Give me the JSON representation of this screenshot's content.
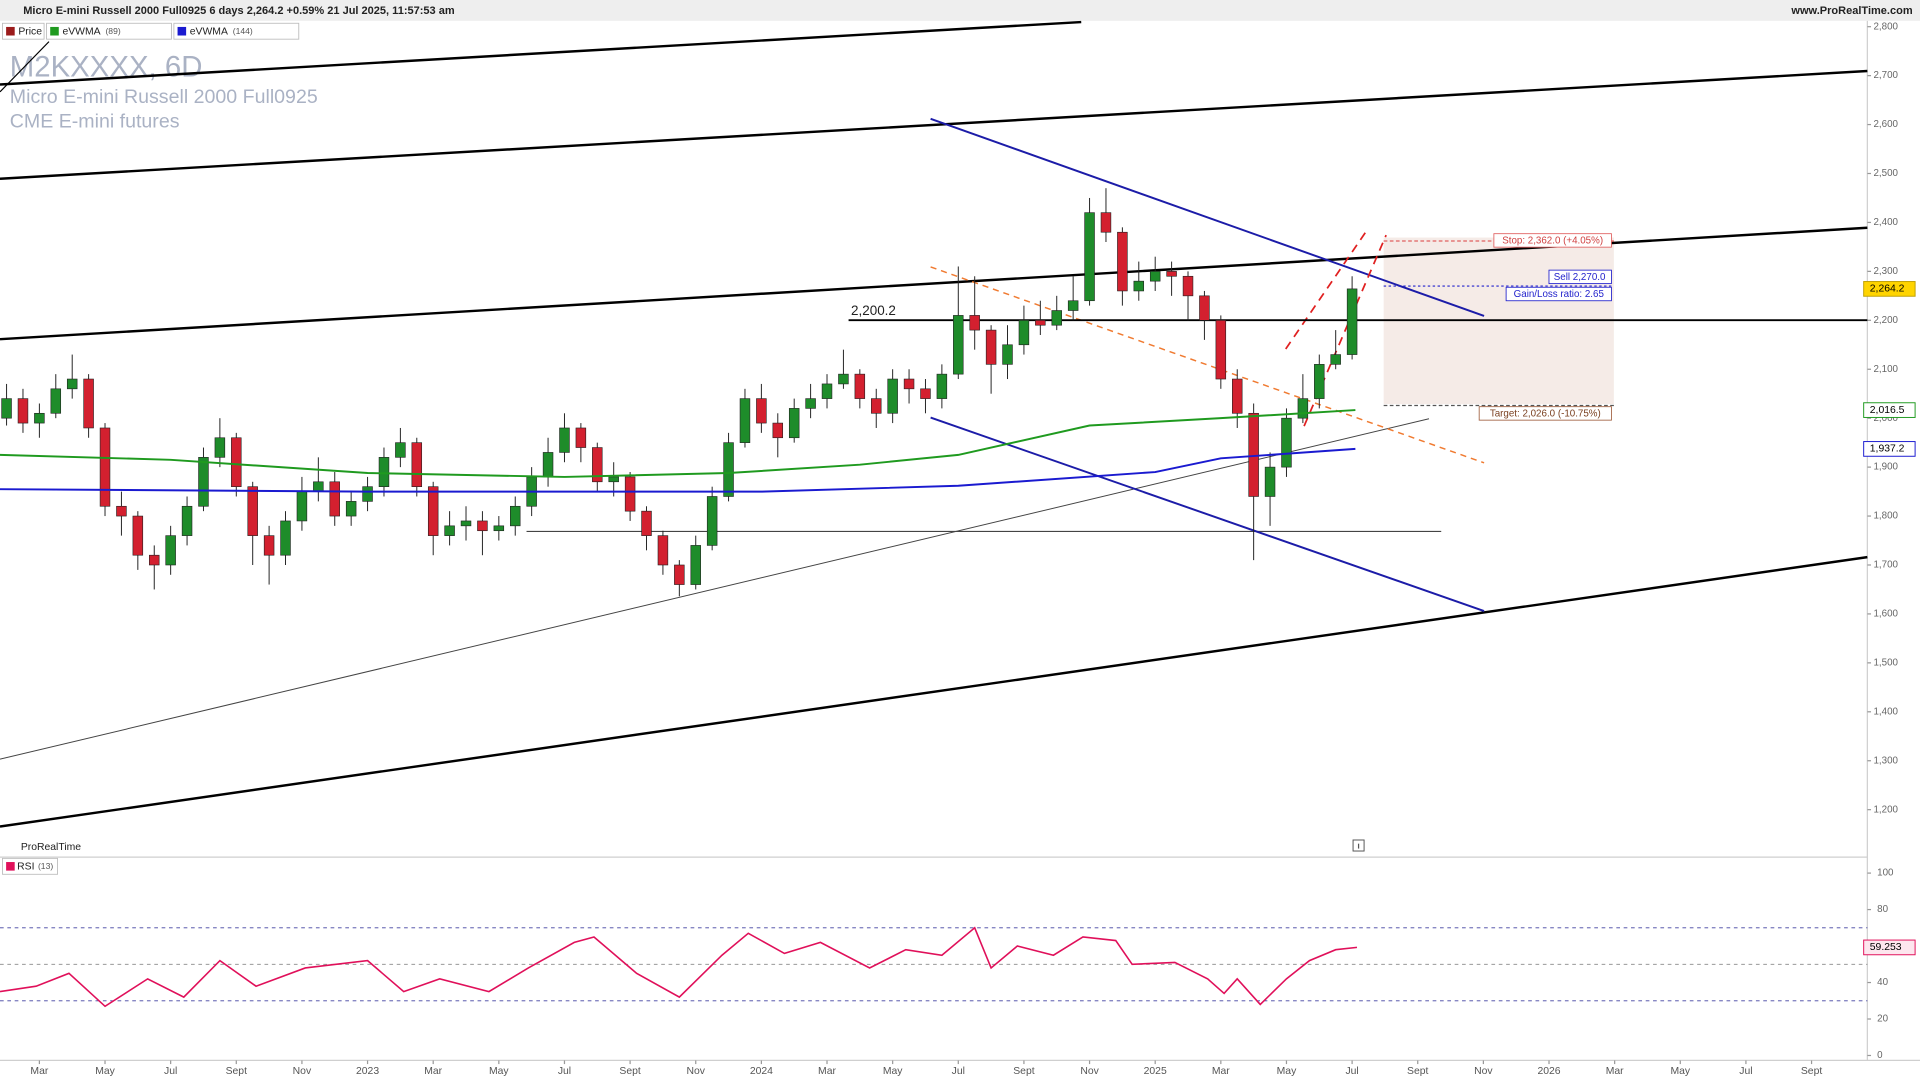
{
  "header": {
    "title": "Micro E-mini Russell 2000 Full0925 6 days 2,264.2 +0.59% 21 Jul 2025, 11:57:53 am",
    "site": "www.ProRealTime.com",
    "brand": "ProRealTime"
  },
  "chart_data": [
    {
      "type": "candlestick",
      "title": "M2KXXXX, 6D",
      "subtitle": [
        "Micro E-mini Russell 2000 Full0925",
        "CME E-mini futures"
      ],
      "xlim": [
        0.8,
        57.7
      ],
      "xticks": [
        {
          "value": 2,
          "label": "Mar"
        },
        {
          "value": 4,
          "label": "May"
        },
        {
          "value": 6,
          "label": "Jul"
        },
        {
          "value": 8,
          "label": "Sept"
        },
        {
          "value": 10,
          "label": "Nov"
        },
        {
          "value": 12,
          "label": "2023"
        },
        {
          "value": 14,
          "label": "Mar"
        },
        {
          "value": 16,
          "label": "May"
        },
        {
          "value": 18,
          "label": "Jul"
        },
        {
          "value": 20,
          "label": "Sept"
        },
        {
          "value": 22,
          "label": "Nov"
        },
        {
          "value": 24,
          "label": "2024"
        },
        {
          "value": 26,
          "label": "Mar"
        },
        {
          "value": 28,
          "label": "May"
        },
        {
          "value": 30,
          "label": "Jul"
        },
        {
          "value": 32,
          "label": "Sept"
        },
        {
          "value": 34,
          "label": "Nov"
        },
        {
          "value": 36,
          "label": "2025"
        },
        {
          "value": 38,
          "label": "Mar"
        },
        {
          "value": 40,
          "label": "May"
        },
        {
          "value": 42,
          "label": "Jul"
        },
        {
          "value": 44,
          "label": "Sept"
        },
        {
          "value": 46,
          "label": "Nov"
        },
        {
          "value": 48,
          "label": "2026"
        },
        {
          "value": 50,
          "label": "Mar"
        },
        {
          "value": 52,
          "label": "May"
        },
        {
          "value": 54,
          "label": "Jul"
        },
        {
          "value": 56,
          "label": "Sept"
        }
      ],
      "ylim": [
        1103,
        2812
      ],
      "yticks": [
        {
          "value": 1200,
          "label": "1,200"
        },
        {
          "value": 1300,
          "label": "1,300"
        },
        {
          "value": 1400,
          "label": "1,400"
        },
        {
          "value": 1500,
          "label": "1,500"
        },
        {
          "value": 1600,
          "label": "1,600"
        },
        {
          "value": 1700,
          "label": "1,700"
        },
        {
          "value": 1800,
          "label": "1,800"
        },
        {
          "value": 1900,
          "label": "1,900"
        },
        {
          "value": 2000,
          "label": "2,000"
        },
        {
          "value": 2100,
          "label": "2,100"
        },
        {
          "value": 2200,
          "label": "2,200"
        },
        {
          "value": 2300,
          "label": "2,300"
        },
        {
          "value": 2400,
          "label": "2,400"
        },
        {
          "value": 2500,
          "label": "2,500"
        },
        {
          "value": 2600,
          "label": "2,600"
        },
        {
          "value": 2700,
          "label": "2,700"
        },
        {
          "value": 2800,
          "label": "2,800"
        }
      ],
      "grid": false,
      "series": [
        {
          "name": "Price",
          "color": "#9b1b1b",
          "up_color": "#1e8c2a",
          "down_color": "#d3202f",
          "last_label": "2,264.2",
          "x": [
            1,
            1.5,
            2,
            2.5,
            3,
            3.5,
            4,
            4.5,
            5,
            5.5,
            6,
            6.5,
            7,
            7.5,
            8,
            8.5,
            9,
            9.5,
            10,
            10.5,
            11,
            11.5,
            12,
            12.5,
            13,
            13.5,
            14,
            14.5,
            15,
            15.5,
            16,
            16.5,
            17,
            17.5,
            18,
            18.5,
            19,
            19.5,
            20,
            20.5,
            21,
            21.5,
            22,
            22.5,
            23,
            23.5,
            24,
            24.5,
            25,
            25.5,
            26,
            26.5,
            27,
            27.5,
            28,
            28.5,
            29,
            29.5,
            30,
            30.5,
            31,
            31.5,
            32,
            32.5,
            33,
            33.5,
            34,
            34.5,
            35,
            35.5,
            36,
            36.5,
            37,
            37.5,
            38,
            38.5,
            39,
            39.5,
            40,
            40.5,
            41,
            41.5,
            42
          ],
          "open": [
            2000,
            2040,
            1990,
            2010,
            2060,
            2080,
            1980,
            1820,
            1800,
            1720,
            1700,
            1760,
            1820,
            1920,
            1960,
            1860,
            1760,
            1720,
            1790,
            1850,
            1870,
            1800,
            1830,
            1860,
            1920,
            1950,
            1860,
            1760,
            1780,
            1790,
            1770,
            1780,
            1820,
            1880,
            1930,
            1980,
            1940,
            1870,
            1880,
            1810,
            1760,
            1700,
            1660,
            1740,
            1840,
            1950,
            2040,
            1990,
            1960,
            2020,
            2040,
            2070,
            2090,
            2040,
            2010,
            2080,
            2060,
            2040,
            2090,
            2210,
            2180,
            2110,
            2150,
            2200,
            2190,
            2220,
            2240,
            2420,
            2380,
            2260,
            2280,
            2300,
            2290,
            2250,
            2200,
            2080,
            2010,
            1840,
            1900,
            2000,
            2040,
            2110,
            2130
          ],
          "high": [
            2070,
            2060,
            2030,
            2090,
            2130,
            2090,
            1990,
            1850,
            1810,
            1740,
            1780,
            1840,
            1940,
            2000,
            1970,
            1870,
            1780,
            1810,
            1880,
            1920,
            1890,
            1850,
            1880,
            1940,
            1980,
            1960,
            1870,
            1810,
            1820,
            1810,
            1800,
            1840,
            1900,
            1960,
            2010,
            1990,
            1950,
            1910,
            1890,
            1820,
            1770,
            1710,
            1760,
            1860,
            1970,
            2060,
            2070,
            2010,
            2040,
            2070,
            2090,
            2140,
            2100,
            2060,
            2100,
            2100,
            2080,
            2110,
            2310,
            2290,
            2190,
            2190,
            2230,
            2240,
            2250,
            2290,
            2450,
            2470,
            2390,
            2320,
            2330,
            2320,
            2300,
            2260,
            2210,
            2100,
            2030,
            1930,
            2020,
            2090,
            2130,
            2180,
            2290
          ],
          "low": [
            1985,
            1970,
            1960,
            2000,
            2040,
            1960,
            1800,
            1760,
            1690,
            1650,
            1680,
            1740,
            1810,
            1900,
            1840,
            1700,
            1660,
            1700,
            1770,
            1830,
            1780,
            1780,
            1810,
            1840,
            1900,
            1840,
            1720,
            1740,
            1750,
            1720,
            1750,
            1760,
            1800,
            1860,
            1910,
            1910,
            1850,
            1840,
            1790,
            1730,
            1680,
            1636,
            1650,
            1730,
            1830,
            1940,
            1970,
            1920,
            1950,
            2000,
            2020,
            2060,
            2020,
            1980,
            1990,
            2030,
            2010,
            2020,
            2080,
            2140,
            2050,
            2080,
            2130,
            2170,
            2180,
            2200,
            2230,
            2360,
            2230,
            2240,
            2260,
            2250,
            2200,
            2160,
            2060,
            1980,
            1710,
            1780,
            1880,
            1990,
            2020,
            2100,
            2120
          ],
          "close": [
            2040,
            1990,
            2010,
            2060,
            2080,
            1980,
            1820,
            1800,
            1720,
            1700,
            1760,
            1820,
            1920,
            1960,
            1860,
            1760,
            1720,
            1790,
            1850,
            1870,
            1800,
            1830,
            1860,
            1920,
            1950,
            1860,
            1760,
            1780,
            1790,
            1770,
            1780,
            1820,
            1880,
            1930,
            1980,
            1940,
            1870,
            1880,
            1810,
            1760,
            1700,
            1660,
            1740,
            1840,
            1950,
            2040,
            1990,
            1960,
            2020,
            2040,
            2070,
            2090,
            2040,
            2010,
            2080,
            2060,
            2040,
            2090,
            2210,
            2180,
            2110,
            2150,
            2200,
            2190,
            2220,
            2240,
            2420,
            2380,
            2260,
            2280,
            2300,
            2290,
            2250,
            2200,
            2080,
            2010,
            1840,
            1900,
            2000,
            2040,
            2110,
            2130,
            2264.2
          ]
        },
        {
          "name": "eVWMA",
          "param": "(89)",
          "color": "#1f9a1f",
          "last_label": "2,016.5",
          "x": [
            0.8,
            6,
            12,
            18,
            23,
            27,
            30,
            34,
            38,
            42.1
          ],
          "values": [
            1925,
            1915,
            1888,
            1880,
            1888,
            1905,
            1925,
            1985,
            2000,
            2016.5
          ]
        },
        {
          "name": "eVWMA",
          "param": "(144)",
          "color": "#1a1ad0",
          "last_label": "1,937.2",
          "x": [
            0.8,
            12,
            24,
            30,
            36,
            38,
            42.1
          ],
          "values": [
            1855,
            1850,
            1850,
            1862,
            1890,
            1918,
            1937.2
          ]
        }
      ],
      "levels": [
        {
          "value": 2200.2,
          "label": "2,200.2"
        }
      ],
      "position": {
        "stop": {
          "value": 2362,
          "label": "Stop: 2,362.0 (+4.05%)"
        },
        "sell": {
          "value": 2270,
          "label": "Sell 2,270.0"
        },
        "ratio": "Gain/Loss ratio: 2.65",
        "target": {
          "value": 2026,
          "label": "Target: 2,026.0 (-10.75%)"
        }
      }
    },
    {
      "type": "line",
      "name": "RSI",
      "param": "(13)",
      "color": "#e0105a",
      "last_label": "59.253",
      "x": [
        0.8,
        1.9,
        2.9,
        4.0,
        5.3,
        6.4,
        7.5,
        8.6,
        10.1,
        12.0,
        13.1,
        14.2,
        15.7,
        16.9,
        18.3,
        18.9,
        20.2,
        21.5,
        22.8,
        23.6,
        24.7,
        25.8,
        27.3,
        28.4,
        29.5,
        30.5,
        31.0,
        31.8,
        32.9,
        33.8,
        34.8,
        35.3,
        36.6,
        37.6,
        38.1,
        38.5,
        39.2,
        40.0,
        40.7,
        41.5,
        42.15
      ],
      "values": [
        35,
        38,
        45,
        27,
        42,
        32,
        52,
        38,
        48,
        52,
        35,
        42,
        35,
        48,
        62,
        65,
        45,
        32,
        55,
        67,
        56,
        62,
        48,
        58,
        55,
        70,
        48,
        60,
        55,
        65,
        63,
        50,
        51,
        42,
        34,
        42,
        28,
        42,
        52,
        58,
        59.253
      ],
      "ylim": [
        -2.7,
        107.4
      ],
      "yticks": [
        0,
        20,
        40,
        60,
        80,
        100
      ],
      "levels": [
        70,
        50,
        30
      ]
    }
  ]
}
